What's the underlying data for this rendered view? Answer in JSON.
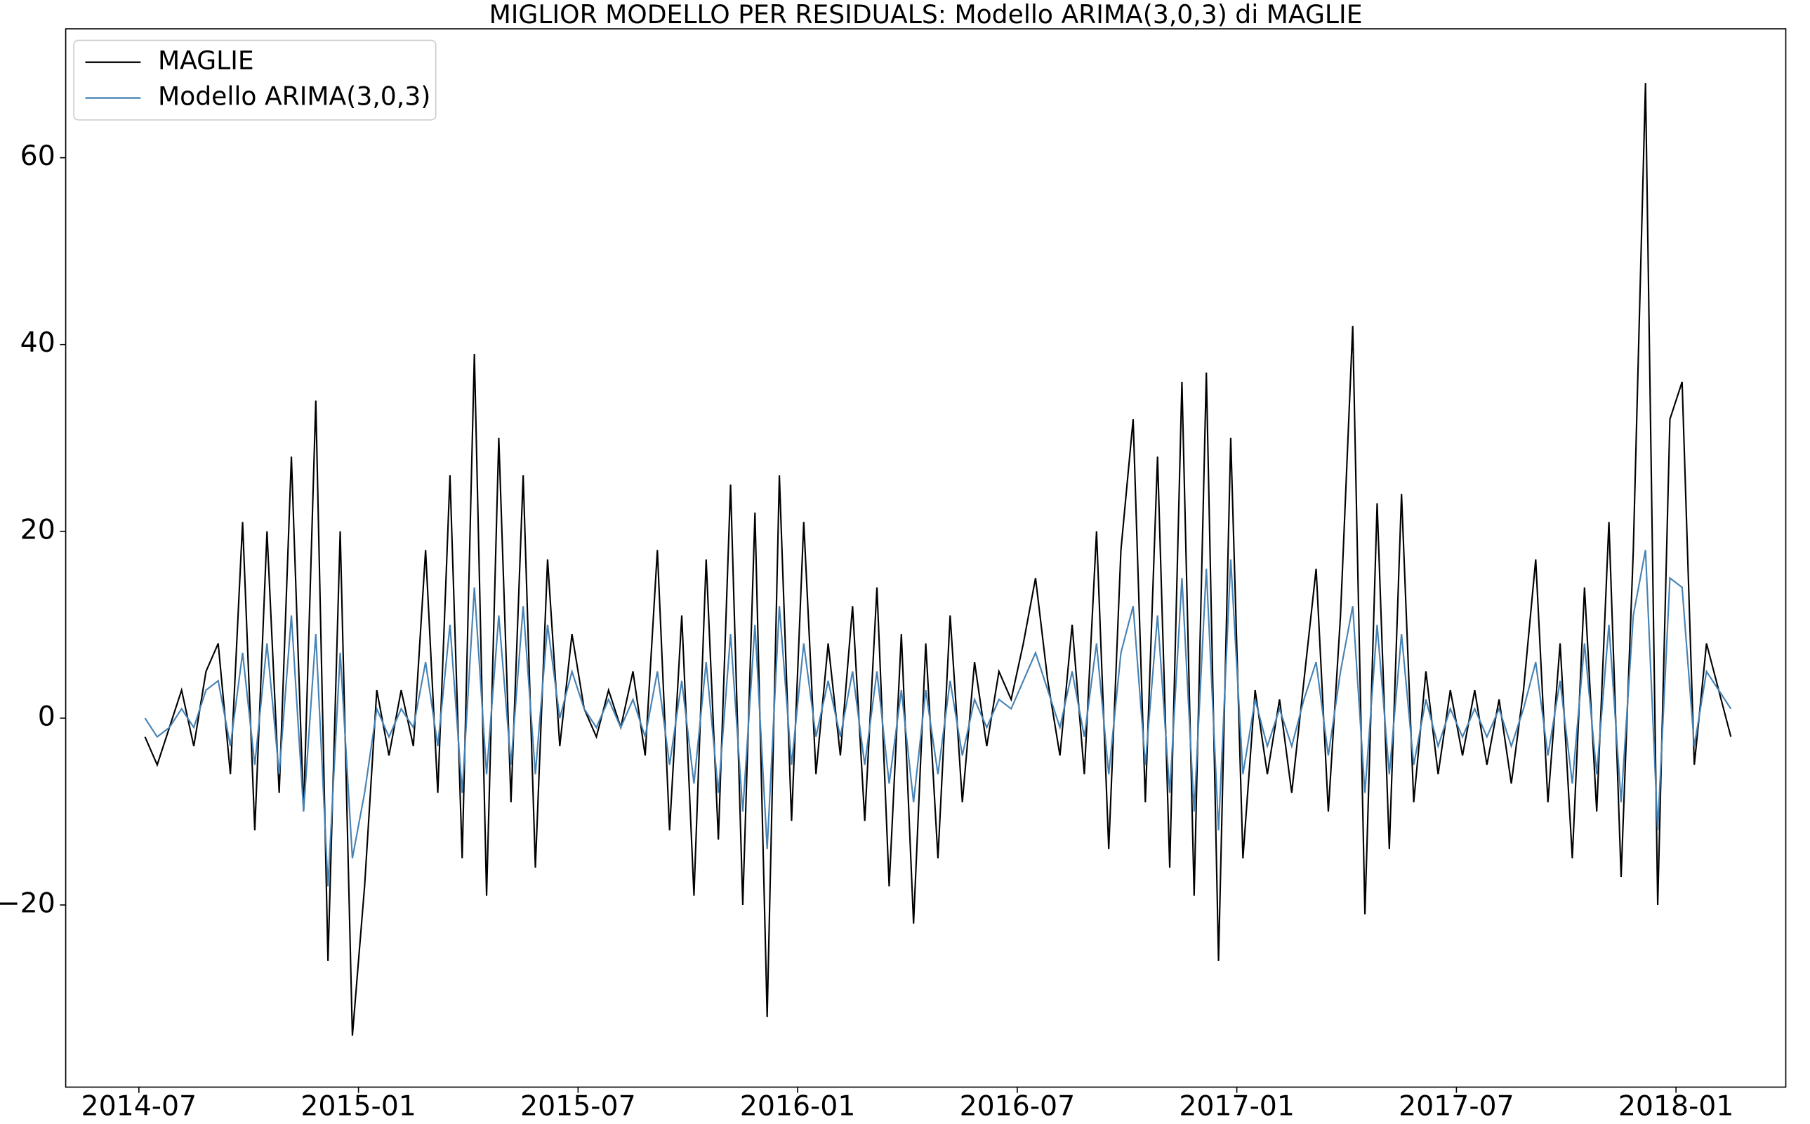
{
  "chart_data": {
    "type": "line",
    "title": "MIGLIOR MODELLO PER RESIDUALS: Modello ARIMA(3,0,3) di MAGLIE",
    "x": [
      "2014-07",
      "2014-07",
      "2014-07",
      "2014-08",
      "2014-08",
      "2014-08",
      "2014-09",
      "2014-09",
      "2014-09",
      "2014-10",
      "2014-10",
      "2014-10",
      "2014-11",
      "2014-11",
      "2014-11",
      "2014-12",
      "2014-12",
      "2014-12",
      "2015-01",
      "2015-01",
      "2015-01",
      "2015-02",
      "2015-02",
      "2015-02",
      "2015-03",
      "2015-03",
      "2015-03",
      "2015-04",
      "2015-04",
      "2015-04",
      "2015-05",
      "2015-05",
      "2015-05",
      "2015-06",
      "2015-06",
      "2015-06",
      "2015-07",
      "2015-07",
      "2015-07",
      "2015-08",
      "2015-08",
      "2015-08",
      "2015-09",
      "2015-09",
      "2015-09",
      "2015-10",
      "2015-10",
      "2015-10",
      "2015-11",
      "2015-11",
      "2015-11",
      "2015-12",
      "2015-12",
      "2015-12",
      "2016-01",
      "2016-01",
      "2016-01",
      "2016-02",
      "2016-02",
      "2016-02",
      "2016-03",
      "2016-03",
      "2016-03",
      "2016-04",
      "2016-04",
      "2016-04",
      "2016-05",
      "2016-05",
      "2016-05",
      "2016-06",
      "2016-06",
      "2016-06",
      "2016-07",
      "2016-07",
      "2016-07",
      "2016-08",
      "2016-08",
      "2016-08",
      "2016-09",
      "2016-09",
      "2016-09",
      "2016-10",
      "2016-10",
      "2016-10",
      "2016-11",
      "2016-11",
      "2016-11",
      "2016-12",
      "2016-12",
      "2016-12",
      "2017-01",
      "2017-01",
      "2017-01",
      "2017-02",
      "2017-02",
      "2017-02",
      "2017-03",
      "2017-03",
      "2017-03",
      "2017-04",
      "2017-04",
      "2017-04",
      "2017-05",
      "2017-05",
      "2017-05",
      "2017-06",
      "2017-06",
      "2017-06",
      "2017-07",
      "2017-07",
      "2017-07",
      "2017-08",
      "2017-08",
      "2017-08",
      "2017-09",
      "2017-09",
      "2017-09",
      "2017-10",
      "2017-10",
      "2017-10",
      "2017-11",
      "2017-11",
      "2017-11",
      "2017-12",
      "2017-12",
      "2017-12",
      "2018-01",
      "2018-01",
      "2018-01",
      "2018-02"
    ],
    "series": [
      {
        "name": "MAGLIE",
        "color": "#000000",
        "values": [
          -2,
          -5,
          -1,
          3,
          -3,
          5,
          8,
          -6,
          21,
          -12,
          20,
          -8,
          28,
          -10,
          34,
          -26,
          20,
          -34,
          -18,
          3,
          -4,
          3,
          -3,
          18,
          -8,
          26,
          -15,
          39,
          -19,
          30,
          -9,
          26,
          -16,
          17,
          -3,
          9,
          1,
          -2,
          3,
          -1,
          5,
          -4,
          18,
          -12,
          11,
          -19,
          17,
          -13,
          25,
          -20,
          22,
          -32,
          26,
          -11,
          21,
          -6,
          8,
          -4,
          12,
          -11,
          14,
          -18,
          9,
          -22,
          8,
          -15,
          11,
          -9,
          6,
          -3,
          5,
          2,
          8,
          15,
          4,
          -4,
          10,
          -6,
          20,
          -14,
          18,
          32,
          -9,
          28,
          -16,
          36,
          -19,
          37,
          -26,
          30,
          -15,
          3,
          -6,
          2,
          -8,
          4,
          16,
          -10,
          11,
          42,
          -21,
          23,
          -14,
          24,
          -9,
          5,
          -6,
          3,
          -4,
          3,
          -5,
          2,
          -7,
          3,
          17,
          -9,
          8,
          -15,
          14,
          -10,
          21,
          -17,
          18,
          68,
          -20,
          32,
          36,
          -5,
          8,
          -2
        ]
      },
      {
        "name": "Modello ARIMA(3,0,3)",
        "color": "#4682b4",
        "values": [
          0,
          -2,
          -1,
          1,
          -1,
          3,
          4,
          -3,
          7,
          -5,
          8,
          -6,
          11,
          -10,
          9,
          -18,
          7,
          -15,
          -8,
          1,
          -2,
          1,
          -1,
          6,
          -3,
          10,
          -8,
          14,
          -6,
          11,
          -5,
          12,
          -6,
          10,
          0,
          5,
          1,
          -1,
          2,
          -1,
          2,
          -2,
          5,
          -5,
          4,
          -7,
          6,
          -8,
          9,
          -10,
          10,
          -14,
          12,
          -5,
          8,
          -2,
          4,
          -2,
          5,
          -5,
          5,
          -7,
          3,
          -9,
          3,
          -6,
          4,
          -4,
          2,
          -1,
          2,
          1,
          4,
          7,
          3,
          -1,
          5,
          -2,
          8,
          -6,
          7,
          12,
          -5,
          11,
          -8,
          15,
          -10,
          16,
          -12,
          17,
          -6,
          2,
          -3,
          1,
          -3,
          2,
          6,
          -4,
          5,
          12,
          -8,
          10,
          -6,
          9,
          -5,
          2,
          -3,
          1,
          -2,
          1,
          -2,
          1,
          -3,
          1,
          6,
          -4,
          4,
          -7,
          8,
          -6,
          10,
          -9,
          11,
          18,
          -12,
          15,
          14,
          -3,
          5,
          1
        ]
      }
    ],
    "xlim": [
      "2014-05",
      "2018-04"
    ],
    "xticks": [
      "2014-07",
      "2015-01",
      "2015-07",
      "2016-01",
      "2016-07",
      "2017-01",
      "2017-07",
      "2018-01"
    ],
    "ylim": [
      -39.5,
      73.8
    ],
    "yticks": [
      {
        "value": -20,
        "label": "−20"
      },
      0,
      20,
      40,
      60
    ],
    "legend": "upper left"
  }
}
